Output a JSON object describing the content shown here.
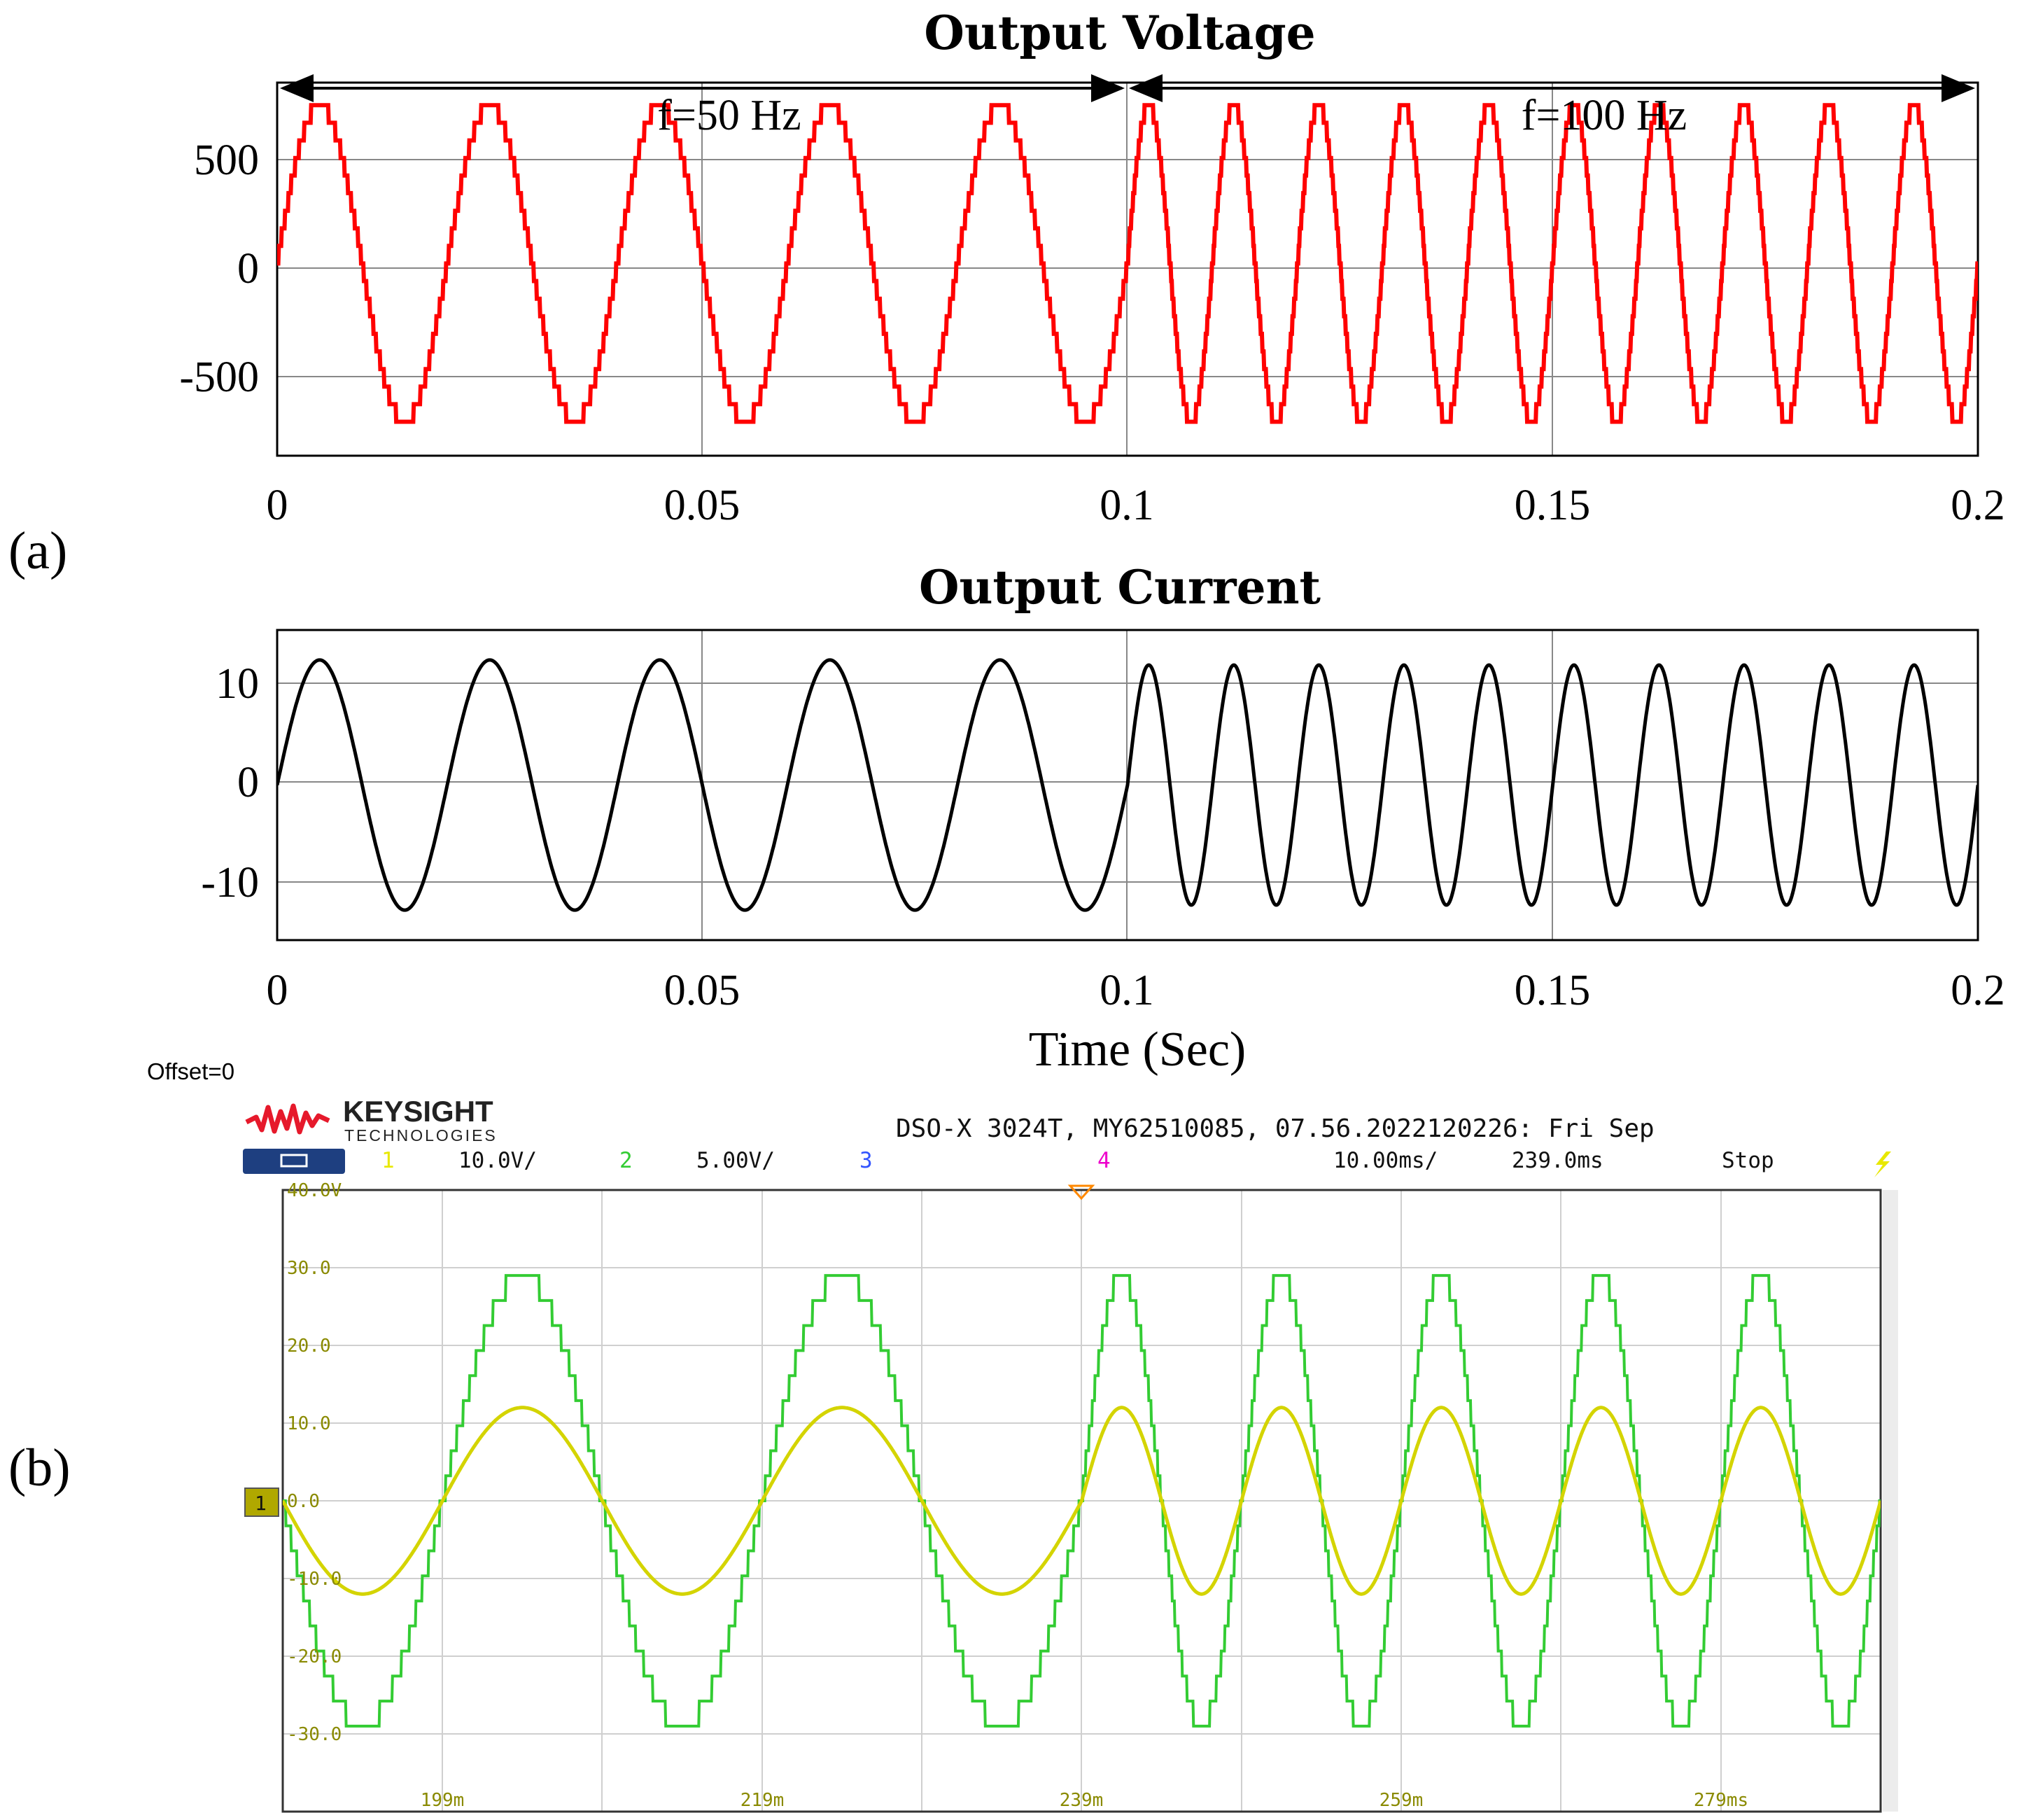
{
  "panel_labels": {
    "a": "(a)",
    "b": "(b)"
  },
  "chart_data": [
    {
      "type": "line",
      "title": "Output Voltage",
      "xlabel": "",
      "ylabel": "",
      "xlim": [
        0,
        0.2
      ],
      "ylim": [
        -850,
        800
      ],
      "x_ticks": [
        "0",
        "0.05",
        "0.1",
        "0.15",
        "0.2"
      ],
      "y_ticks": [
        "500",
        "0",
        "-500"
      ],
      "grid": true,
      "series": [
        {
          "amplitude": 700,
          "color": "#ff0000",
          "staircase_levels": 9,
          "segments": [
            {
              "x": [
                0,
                0.1
              ],
              "frequency_hz": 50
            },
            {
              "x": [
                0.1,
                0.2
              ],
              "frequency_hz": 100
            }
          ]
        }
      ],
      "annotations": [
        {
          "text": "f=50 Hz",
          "x_range": [
            0,
            0.1
          ]
        },
        {
          "text": "f=100 Hz",
          "x_range": [
            0.1,
            0.2
          ]
        }
      ]
    },
    {
      "type": "line",
      "title": "Output Current",
      "xlabel": "Time (Sec)",
      "ylabel": "",
      "xlim": [
        0,
        0.2
      ],
      "ylim": [
        -15.5,
        15.5
      ],
      "x_ticks": [
        "0",
        "0.05",
        "0.1",
        "0.15",
        "0.2"
      ],
      "y_ticks": [
        "10",
        "0",
        "-10"
      ],
      "grid": true,
      "series": [
        {
          "color": "#000000",
          "segments": [
            {
              "x": [
                0,
                0.1
              ],
              "frequency_hz": 50,
              "amplitude": 12.5
            },
            {
              "x": [
                0.1,
                0.2
              ],
              "frequency_hz": 100,
              "amplitude": 12
            }
          ]
        }
      ]
    },
    {
      "type": "line",
      "title": "",
      "xlim": [
        189,
        289
      ],
      "ylim": [
        -40,
        40
      ],
      "x_ticks": [
        "199m",
        "219m",
        "239m",
        "259m",
        "279ms"
      ],
      "y_ticks": [
        "40.0V",
        "30.0",
        "20.0",
        "10.0",
        "0.0",
        "-10.0",
        "-20.0",
        "-30.0"
      ],
      "grid": true,
      "background": "#ffffff",
      "series": [
        {
          "channel": "2",
          "color": "#33cc33",
          "amplitude": 29,
          "staircase_levels": 9,
          "segments": [
            {
              "x": [
                189,
                239
              ],
              "frequency_hz": 50
            },
            {
              "x": [
                239,
                289
              ],
              "frequency_hz": 100
            }
          ]
        },
        {
          "channel": "1",
          "color": "#d4d400",
          "amplitude": 12,
          "segments": [
            {
              "x": [
                189,
                239
              ],
              "frequency_hz": 50
            },
            {
              "x": [
                239,
                289
              ],
              "frequency_hz": 100
            }
          ]
        }
      ]
    }
  ],
  "scope": {
    "offset": "Offset=0",
    "brand": "KEYSIGHT",
    "brand_sub": "TECHNOLOGIES",
    "info": "DSO-X 3024T, MY62510085, 07.56.2022120226: Fri Sep",
    "ch1": "1",
    "ch1_scale": "10.0V/",
    "ch2": "2",
    "ch2_scale": "5.00V/",
    "ch3": "3",
    "ch4": "4",
    "timebase": "10.00ms/",
    "delay": "239.0ms",
    "status": "Stop",
    "ground_marker": "1"
  }
}
